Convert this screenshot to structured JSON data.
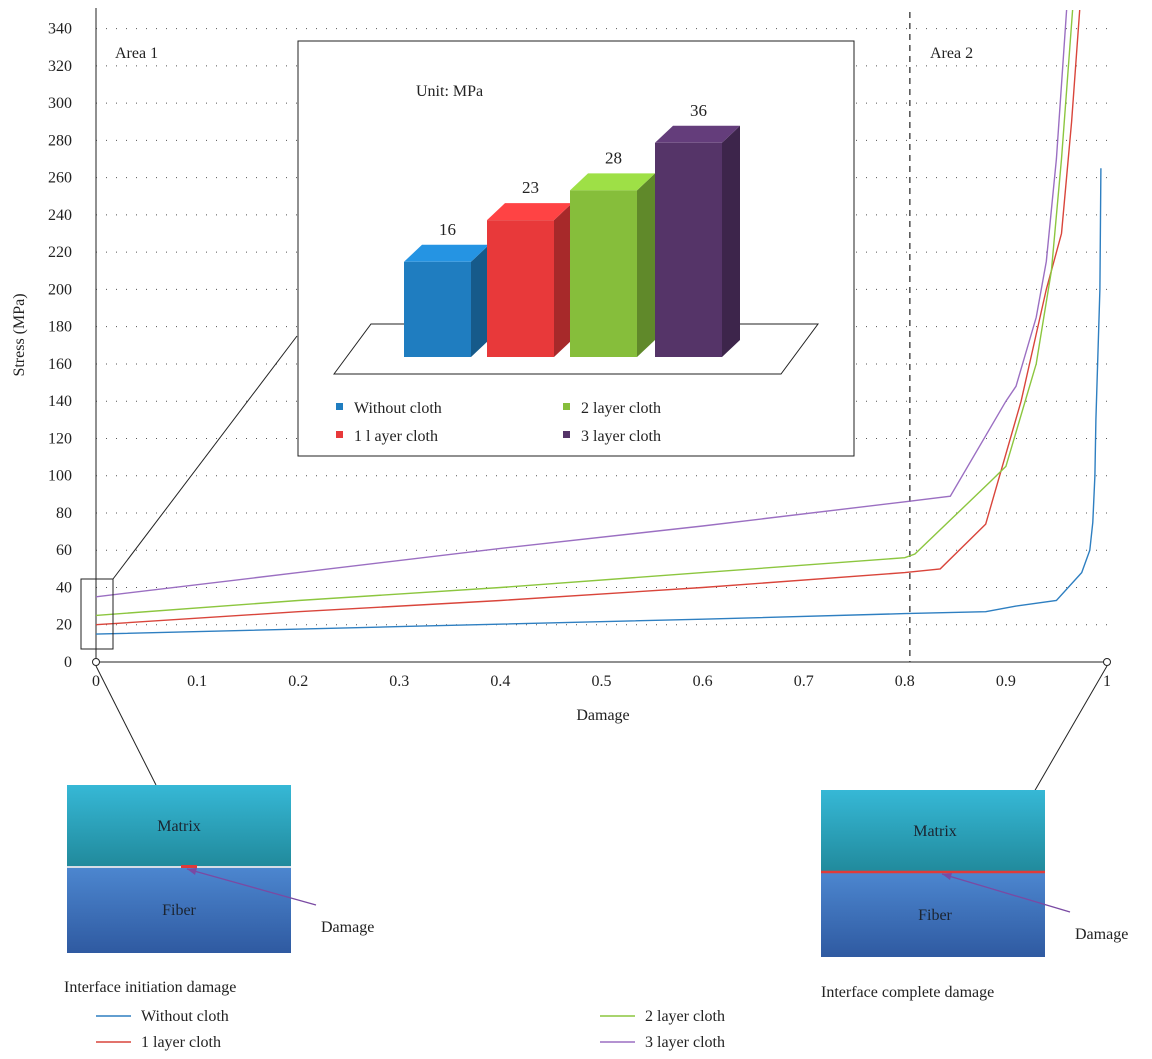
{
  "chart_data": [
    {
      "type": "line",
      "xlabel": "Damage",
      "ylabel": "Stress (MPa)",
      "xlim": [
        0,
        1
      ],
      "ylim": [
        0,
        350
      ],
      "x_ticks": [
        "0",
        "0.1",
        "0.2",
        "0.3",
        "0.4",
        "0.5",
        "0.6",
        "0.7",
        "0.8",
        "0.9",
        "1"
      ],
      "y_ticks": [
        "0",
        "20",
        "40",
        "60",
        "80",
        "100",
        "120",
        "140",
        "160",
        "180",
        "200",
        "220",
        "240",
        "260",
        "280",
        "300",
        "320",
        "340"
      ],
      "grid": "dotted horizontal",
      "legend_position": "bottom",
      "region_labels": [
        "Area 1",
        "Area 2"
      ],
      "region_divider_x": 0.805,
      "series": [
        {
          "name": "Without cloth",
          "color": "#2e7fc1",
          "points": [
            [
              0,
              15
            ],
            [
              0.3,
              19
            ],
            [
              0.6,
              23
            ],
            [
              0.8,
              26
            ],
            [
              0.88,
              27
            ],
            [
              0.91,
              30
            ],
            [
              0.95,
              33
            ],
            [
              0.975,
              48
            ],
            [
              0.983,
              60
            ],
            [
              0.986,
              75
            ],
            [
              0.988,
              100
            ],
            [
              0.989,
              130
            ],
            [
              0.991,
              165
            ],
            [
              0.993,
              200
            ],
            [
              0.994,
              265
            ]
          ]
        },
        {
          "name": "1 layer cloth",
          "color": "#d9453b",
          "points": [
            [
              0,
              20
            ],
            [
              0.2,
              27
            ],
            [
              0.4,
              33
            ],
            [
              0.6,
              40
            ],
            [
              0.8,
              48
            ],
            [
              0.835,
              50
            ],
            [
              0.88,
              74
            ],
            [
              0.915,
              140
            ],
            [
              0.94,
              200
            ],
            [
              0.955,
              230
            ],
            [
              0.965,
              290
            ],
            [
              0.973,
              350
            ]
          ]
        },
        {
          "name": "2 layer cloth",
          "color": "#8cc63f",
          "points": [
            [
              0,
              25
            ],
            [
              0.2,
              33
            ],
            [
              0.4,
              40
            ],
            [
              0.6,
              48
            ],
            [
              0.8,
              56
            ],
            [
              0.81,
              58
            ],
            [
              0.885,
              97
            ],
            [
              0.9,
              105
            ],
            [
              0.93,
              160
            ],
            [
              0.945,
              210
            ],
            [
              0.955,
              270
            ],
            [
              0.966,
              350
            ]
          ]
        },
        {
          "name": "3 layer cloth",
          "color": "#9b6fc2",
          "points": [
            [
              0,
              35
            ],
            [
              0.2,
              48
            ],
            [
              0.4,
              61
            ],
            [
              0.6,
              73
            ],
            [
              0.8,
              86
            ],
            [
              0.845,
              89
            ],
            [
              0.9,
              140
            ],
            [
              0.91,
              148
            ],
            [
              0.93,
              185
            ],
            [
              0.94,
              215
            ],
            [
              0.95,
              270
            ],
            [
              0.96,
              350
            ]
          ]
        }
      ]
    },
    {
      "type": "bar",
      "title": "Unit: MPa",
      "categories": [
        "Without cloth",
        "1 l ayer cloth",
        "2 layer cloth",
        "3 layer cloth"
      ],
      "values": [
        16,
        23,
        28,
        36
      ],
      "colors": [
        "#1f7dc0",
        "#e8393a",
        "#86be3b",
        "#553468"
      ],
      "legend_position": "bottom"
    }
  ],
  "schematics": {
    "left": {
      "top_label": "Matrix",
      "bottom_label": "Fiber",
      "pointer_label": "Damage",
      "caption": "Interface initiation damage"
    },
    "right": {
      "top_label": "Matrix",
      "bottom_label": "Fiber",
      "pointer_label": "Damage",
      "caption": "Interface complete damage"
    }
  },
  "colors": {
    "matrix_top": "#36b8d6",
    "matrix_bottom": "#218a9c",
    "fiber_top": "#4c86cf",
    "fiber_bottom": "#2f5aa1",
    "damage_line": "#e03a3a",
    "pointer": "#7a4aa3"
  }
}
